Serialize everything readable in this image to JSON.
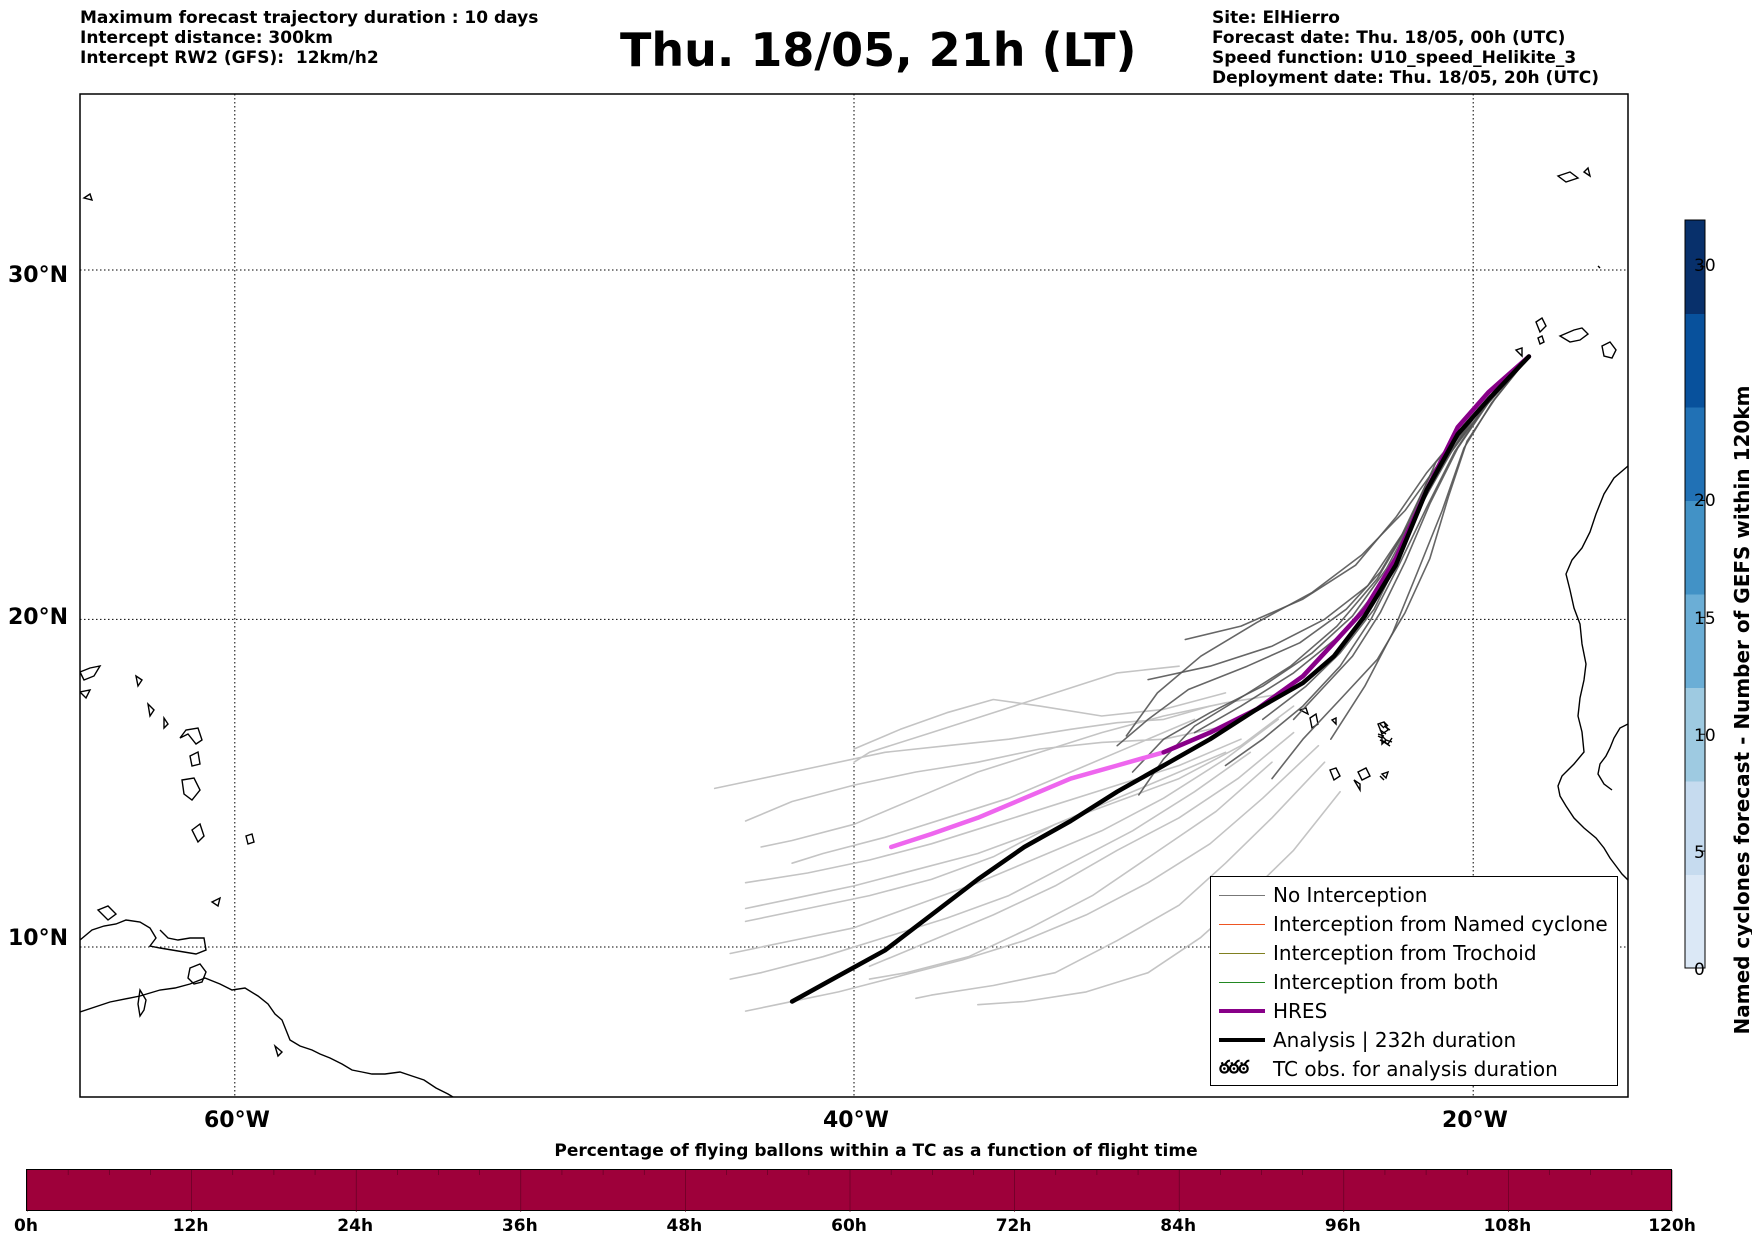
{
  "header": {
    "left_lines": [
      "Maximum forecast trajectory duration : 10 days",
      "Intercept distance: 300km",
      "Intercept RW2 (GFS):  12km/h2"
    ],
    "title": "Thu. 18/05, 21h (LT)",
    "right_lines": [
      "Site: ElHierro",
      "Forecast date: Thu. 18/05, 00h (UTC)",
      "Speed function: U10_speed_Helikite_3",
      "Deployment date: Thu. 18/05, 20h (UTC)"
    ]
  },
  "map": {
    "lat_labels": [
      "30°N",
      "20°N",
      "10°N"
    ],
    "lon_labels": [
      "60°W",
      "40°W",
      "20°W"
    ],
    "lat_values": [
      30,
      20,
      10
    ],
    "lon_values": [
      -60,
      -40,
      -20
    ],
    "extent": {
      "lon": [
        -65,
        -15
      ],
      "lat": [
        5.3,
        34.7
      ]
    },
    "site_lon_lat": [
      -17.9,
      27.7
    ],
    "colors": {
      "ensemble_dark": "#555555",
      "ensemble_light": "#c4c4c4",
      "hres": "#ee66ee",
      "hres_overlay": "#880088",
      "analysis": "#000000"
    }
  },
  "legend": {
    "items": [
      {
        "label": "No Interception",
        "color": "#777777",
        "width": 1
      },
      {
        "label": "Interception from Named cyclone",
        "color": "#ee5522",
        "width": 1
      },
      {
        "label": "Interception from Trochoid",
        "color": "#808020",
        "width": 1
      },
      {
        "label": "Interception from both",
        "color": "#228822",
        "width": 1
      },
      {
        "label": "HRES",
        "color": "#880088",
        "width": 4
      },
      {
        "label": "Analysis | 232h duration",
        "color": "#000000",
        "width": 4
      },
      {
        "label": "TC obs. for analysis duration",
        "color": "",
        "icon": "cyclone-symbols"
      }
    ],
    "cyclone_symbols": "ఠఠఠ"
  },
  "colorbar_right": {
    "title": "Named cyclones forecast - Number of GEFS within 120km",
    "ticks": [
      "0",
      "5",
      "10",
      "15",
      "20",
      "30"
    ],
    "tick_values": [
      0,
      5,
      10,
      15,
      20,
      30
    ],
    "max": 32,
    "colors_low_to_high": [
      "#dbe8f6",
      "#c6dbef",
      "#9ecae1",
      "#6baed6",
      "#4292c6",
      "#2171b5",
      "#08519c",
      "#08306b"
    ]
  },
  "colorbar_bottom": {
    "title": "Percentage of flying ballons within a TC as a function of flight time",
    "ticks": [
      "0h",
      "12h",
      "24h",
      "36h",
      "48h",
      "60h",
      "72h",
      "84h",
      "96h",
      "108h",
      "120h"
    ],
    "fill_color": "#9e003a"
  },
  "chart_data": {
    "type": "line",
    "x_axis": "longitude",
    "y_axis": "latitude",
    "series": [
      {
        "name": "HRES",
        "points": [
          [
            -18.2,
            27.6
          ],
          [
            -19.5,
            26.6
          ],
          [
            -20.5,
            25.6
          ],
          [
            -21.5,
            23.8
          ],
          [
            -22.5,
            21.8
          ],
          [
            -23.5,
            20.3
          ],
          [
            -24.5,
            19.3
          ],
          [
            -25.5,
            18.3
          ],
          [
            -27,
            17.3
          ],
          [
            -28.5,
            16.6
          ],
          [
            -30,
            16.0
          ],
          [
            -31.5,
            15.6
          ],
          [
            -33,
            15.2
          ],
          [
            -34.5,
            14.6
          ],
          [
            -36,
            14.0
          ],
          [
            -37.5,
            13.5
          ],
          [
            -38.8,
            13.1
          ]
        ]
      },
      {
        "name": "Analysis | 232h duration",
        "points": [
          [
            -18.2,
            27.6
          ],
          [
            -19.5,
            26.4
          ],
          [
            -20.5,
            25.4
          ],
          [
            -21.5,
            23.8
          ],
          [
            -22.5,
            21.6
          ],
          [
            -23.5,
            20.1
          ],
          [
            -24.5,
            18.9
          ],
          [
            -25.5,
            18.1
          ],
          [
            -27,
            17.3
          ],
          [
            -28.5,
            16.4
          ],
          [
            -30,
            15.6
          ],
          [
            -31.5,
            14.8
          ],
          [
            -33,
            13.9
          ],
          [
            -34.5,
            13.1
          ],
          [
            -36,
            12.1
          ],
          [
            -37.5,
            11.0
          ],
          [
            -39,
            9.9
          ],
          [
            -40.5,
            9.1
          ],
          [
            -42,
            8.3
          ]
        ]
      }
    ],
    "ensemble_dark": [
      [
        [
          -18.2,
          27.6
        ],
        [
          -19.8,
          26.1
        ],
        [
          -21,
          24.5
        ],
        [
          -22,
          22.8
        ],
        [
          -23,
          21
        ],
        [
          -24.2,
          19.6
        ],
        [
          -25.8,
          18.4
        ],
        [
          -27.5,
          17.4
        ],
        [
          -29,
          16.6
        ]
      ],
      [
        [
          -18.2,
          27.6
        ],
        [
          -19.6,
          26.2
        ],
        [
          -20.7,
          24.9
        ],
        [
          -21.6,
          23.5
        ],
        [
          -22.4,
          21.8
        ],
        [
          -23.2,
          20.3
        ],
        [
          -24.3,
          19.0
        ],
        [
          -25.4,
          18.0
        ],
        [
          -26.8,
          17.0
        ]
      ],
      [
        [
          -18.2,
          27.6
        ],
        [
          -20.0,
          25.9
        ],
        [
          -21.4,
          24.2
        ],
        [
          -22.3,
          22.5
        ],
        [
          -23.4,
          21.0
        ],
        [
          -24.8,
          20.0
        ],
        [
          -26.5,
          19.2
        ],
        [
          -28.5,
          18.6
        ],
        [
          -30.5,
          18.2
        ]
      ],
      [
        [
          -18.2,
          27.6
        ],
        [
          -19.4,
          26.3
        ],
        [
          -20.3,
          25.0
        ],
        [
          -21.0,
          23.2
        ],
        [
          -21.8,
          21.4
        ],
        [
          -22.6,
          19.6
        ],
        [
          -23.5,
          18.0
        ],
        [
          -24.6,
          16.4
        ]
      ],
      [
        [
          -18.2,
          27.6
        ],
        [
          -19.9,
          26.0
        ],
        [
          -21.2,
          24.6
        ],
        [
          -22.1,
          22.8
        ],
        [
          -23.0,
          21.4
        ],
        [
          -24.1,
          20.3
        ],
        [
          -25.6,
          19.3
        ],
        [
          -27.3,
          18.6
        ],
        [
          -29.2,
          17.9
        ],
        [
          -30.5,
          17.0
        ],
        [
          -31.5,
          16.2
        ]
      ],
      [
        [
          -18.2,
          27.6
        ],
        [
          -19.7,
          26.1
        ],
        [
          -20.8,
          24.8
        ],
        [
          -21.8,
          23.2
        ],
        [
          -22.8,
          21.5
        ],
        [
          -23.9,
          20.1
        ],
        [
          -25.2,
          19.0
        ],
        [
          -26.8,
          18.0
        ],
        [
          -28.5,
          17.2
        ],
        [
          -30,
          16.4
        ],
        [
          -31.0,
          15.4
        ]
      ],
      [
        [
          -18.2,
          27.6
        ],
        [
          -19.3,
          26.4
        ],
        [
          -20.2,
          25.2
        ],
        [
          -20.8,
          23.6
        ],
        [
          -21.4,
          21.8
        ],
        [
          -22.2,
          20.2
        ],
        [
          -23.1,
          18.8
        ],
        [
          -24.3,
          17.6
        ],
        [
          -25.5,
          16.4
        ],
        [
          -26.5,
          15.2
        ]
      ],
      [
        [
          -18.2,
          27.6
        ],
        [
          -19.6,
          26.2
        ],
        [
          -20.6,
          24.9
        ],
        [
          -21.5,
          23.3
        ],
        [
          -22.4,
          21.6
        ],
        [
          -23.3,
          20.0
        ],
        [
          -24.3,
          18.6
        ],
        [
          -25.5,
          17.4
        ],
        [
          -26.8,
          16.4
        ],
        [
          -28.0,
          15.6
        ]
      ],
      [
        [
          -18.2,
          27.6
        ],
        [
          -20.1,
          25.8
        ],
        [
          -21.5,
          24.3
        ],
        [
          -22.5,
          23.0
        ],
        [
          -23.8,
          21.6
        ],
        [
          -25.5,
          20.6
        ],
        [
          -27.5,
          19.8
        ],
        [
          -29.3,
          19.4
        ]
      ],
      [
        [
          -18.2,
          27.6
        ],
        [
          -19.9,
          26.0
        ],
        [
          -21.1,
          24.4
        ],
        [
          -22.0,
          22.9
        ],
        [
          -23.1,
          21.2
        ],
        [
          -24.4,
          19.8
        ],
        [
          -25.9,
          18.6
        ],
        [
          -27.6,
          17.6
        ],
        [
          -29.0,
          16.8
        ],
        [
          -30.0,
          15.8
        ],
        [
          -30.8,
          14.7
        ]
      ],
      [
        [
          -18.2,
          27.6
        ],
        [
          -19.5,
          26.3
        ],
        [
          -20.5,
          25.0
        ],
        [
          -21.4,
          23.4
        ],
        [
          -22.2,
          21.7
        ],
        [
          -23.0,
          20.2
        ],
        [
          -23.9,
          18.9
        ],
        [
          -24.9,
          17.9
        ],
        [
          -25.8,
          17.0
        ]
      ],
      [
        [
          -18.2,
          27.6
        ],
        [
          -19.8,
          26.1
        ],
        [
          -21.0,
          24.7
        ],
        [
          -22.2,
          23.2
        ],
        [
          -23.6,
          21.9
        ],
        [
          -25.2,
          20.8
        ],
        [
          -27.0,
          19.9
        ],
        [
          -28.8,
          18.9
        ],
        [
          -30.2,
          17.8
        ],
        [
          -31.2,
          16.5
        ]
      ]
    ],
    "ensemble_light": [
      [
        [
          -28.5,
          17.4
        ],
        [
          -30,
          17.0
        ],
        [
          -31.5,
          16.9
        ],
        [
          -33,
          16.7
        ],
        [
          -35,
          16.4
        ],
        [
          -37,
          16.2
        ],
        [
          -39,
          16.0
        ],
        [
          -41,
          15.6
        ],
        [
          -43,
          15.2
        ],
        [
          -44.5,
          14.9
        ]
      ],
      [
        [
          -28,
          16.8
        ],
        [
          -30,
          16.4
        ],
        [
          -32,
          16.3
        ],
        [
          -34,
          16.1
        ],
        [
          -36,
          15.7
        ],
        [
          -38,
          15.4
        ],
        [
          -40,
          15.0
        ],
        [
          -42,
          14.5
        ],
        [
          -43.5,
          13.9
        ]
      ],
      [
        [
          -25.8,
          17.4
        ],
        [
          -27.5,
          16.2
        ],
        [
          -29.5,
          15.2
        ],
        [
          -31.5,
          14.5
        ],
        [
          -33.5,
          13.8
        ],
        [
          -35.5,
          12.8
        ],
        [
          -37.5,
          12.1
        ],
        [
          -39.5,
          11.6
        ],
        [
          -41.5,
          11.2
        ],
        [
          -43.5,
          10.8
        ]
      ],
      [
        [
          -26.3,
          17.0
        ],
        [
          -28,
          15.8
        ],
        [
          -30,
          14.6
        ],
        [
          -32,
          13.6
        ],
        [
          -34,
          12.8
        ],
        [
          -36,
          12.0
        ],
        [
          -38,
          11.3
        ],
        [
          -40,
          10.6
        ],
        [
          -42,
          10.2
        ],
        [
          -44,
          9.8
        ]
      ],
      [
        [
          -25.0,
          16.2
        ],
        [
          -26.8,
          14.6
        ],
        [
          -28.5,
          13.2
        ],
        [
          -30.5,
          12.0
        ],
        [
          -32.5,
          11.0
        ],
        [
          -34.5,
          10.2
        ],
        [
          -36.5,
          9.6
        ],
        [
          -38.5,
          9.1
        ],
        [
          -40.5,
          8.6
        ],
        [
          -42.5,
          8.2
        ],
        [
          -43.5,
          8.0
        ]
      ],
      [
        [
          -24.8,
          15.7
        ],
        [
          -26.5,
          14.0
        ],
        [
          -28.0,
          12.6
        ],
        [
          -29.5,
          11.3
        ],
        [
          -31.5,
          10.2
        ],
        [
          -33.5,
          9.2
        ],
        [
          -35.5,
          8.8
        ],
        [
          -37.5,
          8.5
        ],
        [
          -38,
          8.4
        ]
      ],
      [
        [
          -27.5,
          16.4
        ],
        [
          -29.5,
          15.6
        ],
        [
          -31.5,
          15.0
        ],
        [
          -33.5,
          14.4
        ],
        [
          -35.5,
          13.8
        ],
        [
          -37.5,
          13.2
        ],
        [
          -39.5,
          12.7
        ],
        [
          -41.5,
          12.3
        ],
        [
          -43.5,
          12.0
        ]
      ],
      [
        [
          -28,
          17.8
        ],
        [
          -30,
          17.3
        ],
        [
          -32,
          17.1
        ],
        [
          -34,
          17.4
        ],
        [
          -35.5,
          17.6
        ],
        [
          -37,
          17.2
        ],
        [
          -38.5,
          16.7
        ],
        [
          -40,
          16.1
        ]
      ],
      [
        [
          -26,
          17.8
        ],
        [
          -28,
          17.5
        ],
        [
          -30,
          17.1
        ],
        [
          -32,
          16.6
        ],
        [
          -34,
          16.0
        ],
        [
          -36,
          15.4
        ],
        [
          -38,
          14.6
        ],
        [
          -40,
          13.8
        ],
        [
          -42,
          13.3
        ],
        [
          -43,
          13.1
        ]
      ],
      [
        [
          -29.5,
          18.6
        ],
        [
          -31.5,
          18.4
        ],
        [
          -33.5,
          17.8
        ],
        [
          -35.5,
          17.2
        ],
        [
          -37.5,
          16.6
        ],
        [
          -39.5,
          16.0
        ],
        [
          -40.0,
          15.7
        ]
      ],
      [
        [
          -27.2,
          16.0
        ],
        [
          -29.0,
          14.8
        ],
        [
          -31,
          13.6
        ],
        [
          -33,
          12.6
        ],
        [
          -35,
          11.6
        ],
        [
          -37,
          10.9
        ],
        [
          -39,
          10.3
        ],
        [
          -41,
          9.7
        ],
        [
          -43,
          9.2
        ],
        [
          -44,
          9.0
        ]
      ],
      [
        [
          -25.8,
          16.6
        ],
        [
          -27.6,
          15.2
        ],
        [
          -29.5,
          14.0
        ],
        [
          -31.5,
          13.0
        ],
        [
          -33.5,
          11.9
        ],
        [
          -35.5,
          11.0
        ],
        [
          -37.5,
          10.2
        ],
        [
          -39.5,
          9.4
        ]
      ],
      [
        [
          -29,
          17.0
        ],
        [
          -31,
          16.2
        ],
        [
          -33,
          15.4
        ],
        [
          -35,
          14.6
        ],
        [
          -37,
          14.0
        ],
        [
          -39,
          13.4
        ],
        [
          -41,
          12.9
        ],
        [
          -42,
          12.6
        ]
      ],
      [
        [
          -28,
          16.0
        ],
        [
          -30,
          15.2
        ],
        [
          -32,
          14.4
        ],
        [
          -34,
          13.6
        ],
        [
          -36,
          12.9
        ],
        [
          -38,
          12.4
        ],
        [
          -40,
          11.9
        ],
        [
          -42,
          11.5
        ],
        [
          -43.5,
          11.2
        ]
      ],
      [
        [
          -26.5,
          15.7
        ],
        [
          -28.3,
          14.2
        ],
        [
          -30.3,
          12.9
        ],
        [
          -32.3,
          11.6
        ],
        [
          -34.3,
          10.6
        ],
        [
          -36.3,
          9.7
        ],
        [
          -38.3,
          9.2
        ],
        [
          -39.5,
          9.0
        ]
      ],
      [
        [
          -24.3,
          14.8
        ],
        [
          -25.8,
          13.0
        ],
        [
          -27.3,
          11.6
        ],
        [
          -28.8,
          10.3
        ],
        [
          -30.5,
          9.2
        ],
        [
          -32.5,
          8.6
        ],
        [
          -34.5,
          8.3
        ],
        [
          -36,
          8.2
        ]
      ]
    ]
  }
}
